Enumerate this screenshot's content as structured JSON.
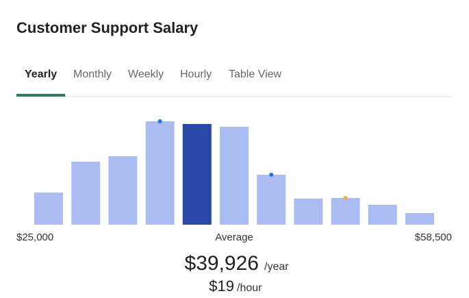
{
  "header": {
    "title": "Customer Support Salary"
  },
  "tabs": [
    {
      "label": "Yearly",
      "active": true
    },
    {
      "label": "Monthly",
      "active": false
    },
    {
      "label": "Weekly",
      "active": false
    },
    {
      "label": "Hourly",
      "active": false
    },
    {
      "label": "Table View",
      "active": false
    }
  ],
  "chart_data": {
    "type": "bar",
    "values": [
      47,
      92,
      100,
      151,
      147,
      143,
      73,
      38,
      39,
      29,
      17
    ],
    "color": "#aabcf2",
    "highlight_color": "#2a48a5",
    "highlight_index": 4,
    "markers": [
      {
        "index": 3,
        "color": "#1a73e8"
      },
      {
        "index": 6,
        "color": "#1a73e8"
      },
      {
        "index": 8,
        "color": "#f4a949"
      }
    ],
    "xlim": [
      {
        "value": 25000,
        "label": "$25,000"
      },
      {
        "value": 58500,
        "label": "$58,500"
      }
    ],
    "center_label": "Average"
  },
  "summary": {
    "yearly": {
      "amount": "$39,926",
      "unit": "/year"
    },
    "hourly": {
      "amount": "$19",
      "unit": "/hour"
    }
  }
}
